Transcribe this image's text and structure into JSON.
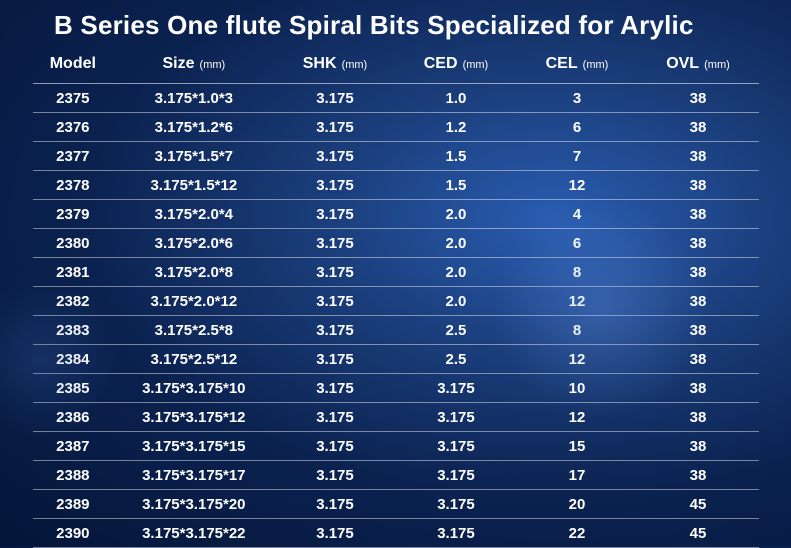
{
  "title": "B Series One flute Spiral Bits Specialized for Arylic",
  "columns": [
    {
      "label": "Model",
      "unit": "",
      "class": "col-model"
    },
    {
      "label": "Size",
      "unit": "(mm)",
      "class": "col-size"
    },
    {
      "label": "SHK",
      "unit": "(mm)",
      "class": "col-shk"
    },
    {
      "label": "CED",
      "unit": "(mm)",
      "class": "col-ced"
    },
    {
      "label": "CEL",
      "unit": "(mm)",
      "class": "col-cel"
    },
    {
      "label": "OVL",
      "unit": "(mm)",
      "class": "col-ovl"
    }
  ],
  "rows": [
    [
      "2375",
      "3.175*1.0*3",
      "3.175",
      "1.0",
      "3",
      "38"
    ],
    [
      "2376",
      "3.175*1.2*6",
      "3.175",
      "1.2",
      "6",
      "38"
    ],
    [
      "2377",
      "3.175*1.5*7",
      "3.175",
      "1.5",
      "7",
      "38"
    ],
    [
      "2378",
      "3.175*1.5*12",
      "3.175",
      "1.5",
      "12",
      "38"
    ],
    [
      "2379",
      "3.175*2.0*4",
      "3.175",
      "2.0",
      "4",
      "38"
    ],
    [
      "2380",
      "3.175*2.0*6",
      "3.175",
      "2.0",
      "6",
      "38"
    ],
    [
      "2381",
      "3.175*2.0*8",
      "3.175",
      "2.0",
      "8",
      "38"
    ],
    [
      "2382",
      "3.175*2.0*12",
      "3.175",
      "2.0",
      "12",
      "38"
    ],
    [
      "2383",
      "3.175*2.5*8",
      "3.175",
      "2.5",
      "8",
      "38"
    ],
    [
      "2384",
      "3.175*2.5*12",
      "3.175",
      "2.5",
      "12",
      "38"
    ],
    [
      "2385",
      "3.175*3.175*10",
      "3.175",
      "3.175",
      "10",
      "38"
    ],
    [
      "2386",
      "3.175*3.175*12",
      "3.175",
      "3.175",
      "12",
      "38"
    ],
    [
      "2387",
      "3.175*3.175*15",
      "3.175",
      "3.175",
      "15",
      "38"
    ],
    [
      "2388",
      "3.175*3.175*17",
      "3.175",
      "3.175",
      "17",
      "38"
    ],
    [
      "2389",
      "3.175*3.175*20",
      "3.175",
      "3.175",
      "20",
      "45"
    ],
    [
      "2390",
      "3.175*3.175*22",
      "3.175",
      "3.175",
      "22",
      "45"
    ]
  ],
  "style": {
    "title_fontsize": 26,
    "header_fontsize": 16,
    "cell_fontsize": 15,
    "unit_fontsize": 11,
    "text_color": "#ffffff",
    "border_color": "rgba(255,255,255,0.5)",
    "bg_gradient_inner": "#2a5cb0",
    "bg_gradient_outer": "#041538"
  }
}
